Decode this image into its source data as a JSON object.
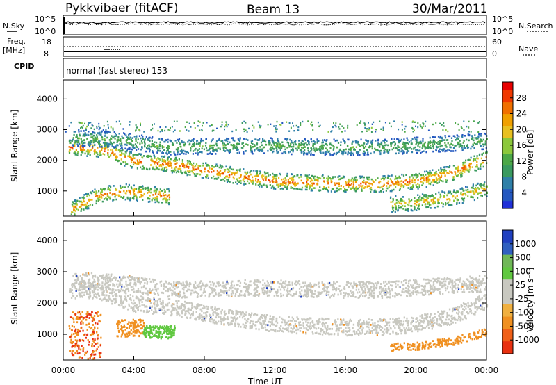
{
  "header": {
    "title": "Pykkvibaer (fitACF)",
    "beam": "Beam 13",
    "date": "30/Mar/2011"
  },
  "nsky_panel": {
    "left_label": "N.Sky",
    "right_label": "N.Search",
    "left_ticks": [
      "10^5",
      "10^0"
    ],
    "right_ticks": [
      "10^5",
      "10^0"
    ]
  },
  "freq_panel": {
    "left_label_1": "Freq.",
    "left_label_2": "[MHz]",
    "right_label": "Nave",
    "left_ticks": [
      "18",
      "8"
    ],
    "right_ticks": [
      "60",
      "0"
    ]
  },
  "cpid_panel": {
    "label": "CPID",
    "text": "normal (fast stereo) 153"
  },
  "colors": {
    "power": [
      "#2030d8",
      "#2458c0",
      "#2f80a8",
      "#3a9a60",
      "#4ca848",
      "#8cc83c",
      "#e8c020",
      "#f0a000",
      "#f07000",
      "#f03800",
      "#e80000"
    ],
    "velocity_gray": "#c8c8c0",
    "velocity_green": "#60c840",
    "velocity_orange": "#f09020",
    "velocity_red": "#e83010",
    "velocity_blue": "#2040c0"
  },
  "chart_data": [
    {
      "type": "heatmap",
      "title": "",
      "xlabel": "Time UT",
      "ylabel": "Slant Range [km]",
      "x_ticks": [
        "00:00",
        "04:00",
        "08:00",
        "12:00",
        "16:00",
        "20:00",
        "00:00"
      ],
      "y_ticks": [
        1000,
        2000,
        3000,
        4000
      ],
      "xlim_hours": [
        0,
        24
      ],
      "ylim_km": [
        180,
        4620
      ],
      "colorbar": {
        "label": "Power [dB]",
        "ticks": [
          4,
          8,
          12,
          16,
          20,
          24,
          28
        ],
        "range": [
          0,
          32
        ]
      },
      "features": [
        {
          "name": "main echo band",
          "points_hours_km": [
            [
              0.3,
              2450
            ],
            [
              2.0,
              2400
            ],
            [
              4.0,
              2000
            ],
            [
              6.0,
              1900
            ],
            [
              8.0,
              1700
            ],
            [
              10.0,
              1500
            ],
            [
              12.0,
              1350
            ],
            [
              14.0,
              1300
            ],
            [
              16.0,
              1250
            ],
            [
              18.0,
              1250
            ],
            [
              20.0,
              1350
            ],
            [
              22.0,
              1600
            ],
            [
              24.0,
              2100
            ]
          ],
          "peak_power_db": 28
        },
        {
          "name": "upper band",
          "points_hours_km": [
            [
              0.5,
              2750
            ],
            [
              3.0,
              2700
            ],
            [
              6.0,
              2450
            ],
            [
              9.0,
              2500
            ],
            [
              12.0,
              2500
            ],
            [
              15.0,
              2450
            ],
            [
              18.0,
              2450
            ],
            [
              21.0,
              2550
            ],
            [
              24.0,
              2650
            ]
          ],
          "peak_power_db": 14
        },
        {
          "name": "near-range echoes",
          "points_hours_km": [
            [
              0.4,
              400
            ],
            [
              1.0,
              600
            ],
            [
              2.0,
              900
            ],
            [
              3.5,
              1000
            ],
            [
              6.0,
              850
            ]
          ],
          "peak_power_db": 26
        },
        {
          "name": "late lower band",
          "points_hours_km": [
            [
              18.5,
              600
            ],
            [
              20.0,
              650
            ],
            [
              22.0,
              800
            ],
            [
              24.0,
              1100
            ]
          ],
          "peak_power_db": 22
        }
      ]
    },
    {
      "type": "heatmap",
      "title": "",
      "xlabel": "Time UT",
      "ylabel": "Slant Range [km]",
      "x_ticks": [
        "00:00",
        "04:00",
        "08:00",
        "12:00",
        "16:00",
        "20:00",
        "00:00"
      ],
      "y_ticks": [
        1000,
        2000,
        3000,
        4000
      ],
      "xlim_hours": [
        0,
        24
      ],
      "ylim_km": [
        180,
        4620
      ],
      "colorbar": {
        "label": "Velocity [m s⁻¹]",
        "ticks": [
          1000,
          500,
          100,
          25,
          -25,
          -100,
          -500,
          -1000
        ]
      },
      "features": [
        {
          "name": "ground scatter",
          "velocity_ms": 0,
          "color": "gray"
        },
        {
          "name": "near-range flow",
          "velocity_ms": -500,
          "color": "orange/red"
        },
        {
          "name": "early flow",
          "velocity_ms": 100,
          "color": "green"
        },
        {
          "name": "late flow",
          "velocity_ms": -100,
          "color": "orange"
        }
      ]
    }
  ]
}
